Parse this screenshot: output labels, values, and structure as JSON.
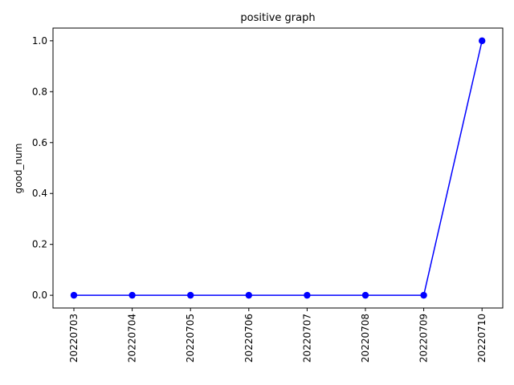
{
  "chart_data": {
    "type": "line",
    "title": "positive graph",
    "xlabel": "",
    "ylabel": "good_num",
    "categories": [
      "20220703",
      "20220704",
      "20220705",
      "20220706",
      "20220707",
      "20220708",
      "20220709",
      "20220710"
    ],
    "series": [
      {
        "values": [
          0,
          0,
          0,
          0,
          0,
          0,
          0,
          1
        ],
        "color": "#0000ff",
        "marker": "circle"
      }
    ],
    "ylim": [
      -0.05,
      1.05
    ],
    "yticks": [
      "0.0",
      "0.2",
      "0.4",
      "0.6",
      "0.8",
      "1.0"
    ],
    "x_tick_rotation": "vertical",
    "grid": false,
    "legend": "none"
  }
}
